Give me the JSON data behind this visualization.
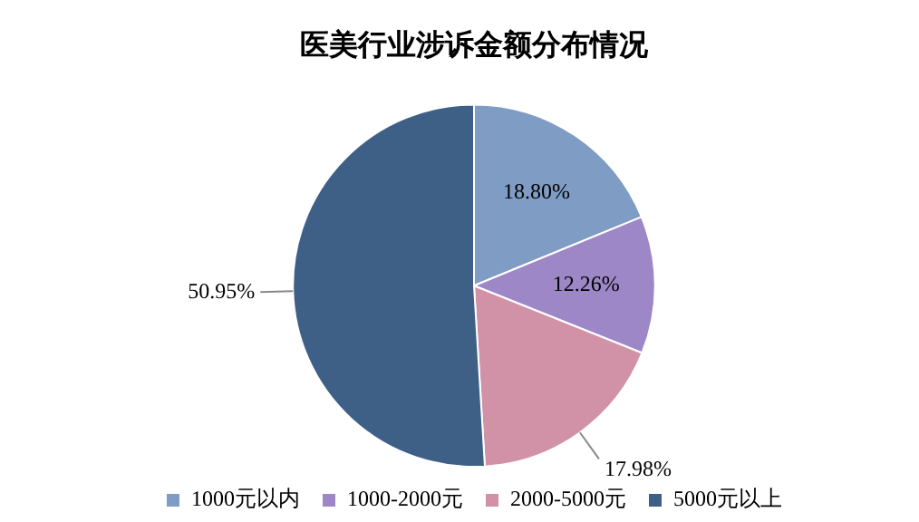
{
  "chart_data": {
    "type": "pie",
    "title": "医美行业涉诉金额分布情况",
    "categories": [
      "1000元以内",
      "1000-2000元",
      "2000-5000元",
      "5000元以上"
    ],
    "values": [
      18.8,
      12.26,
      17.98,
      50.95
    ],
    "colors": [
      "#7f9cc4",
      "#9d87c6",
      "#d191a6",
      "#3e5f86"
    ],
    "value_labels": [
      "18.80%",
      "12.26%",
      "17.98%",
      "50.95%"
    ],
    "legend": "bottom"
  }
}
